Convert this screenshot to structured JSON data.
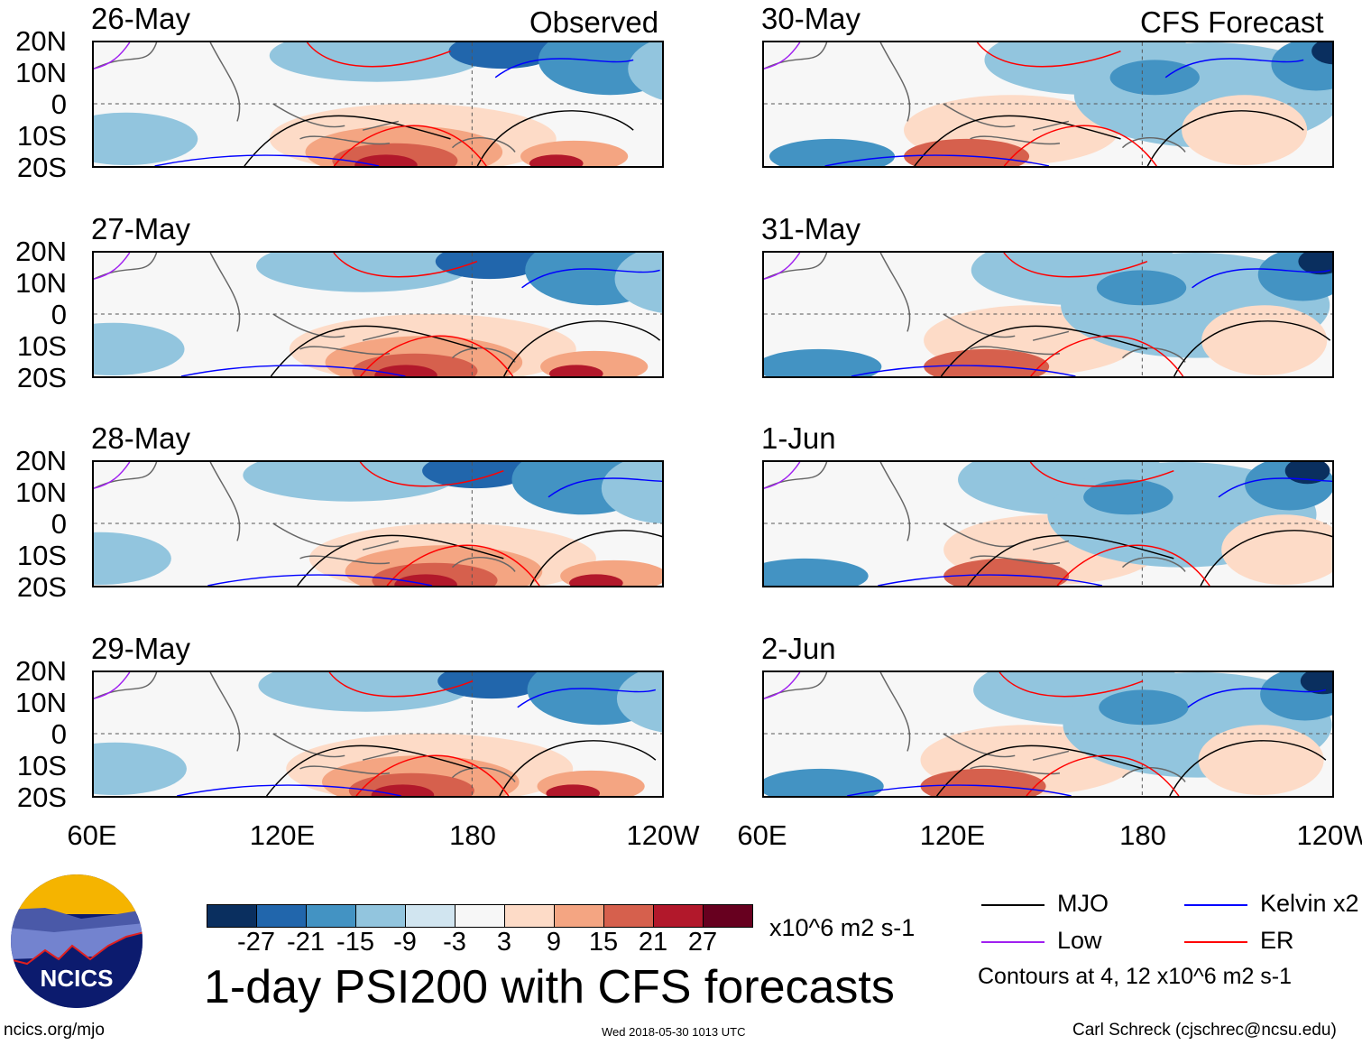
{
  "title": "1-day PSI200 with CFS forecasts",
  "headers": {
    "observed": "Observed",
    "forecast": "CFS Forecast"
  },
  "panels_left": [
    "26-May",
    "27-May",
    "28-May",
    "29-May"
  ],
  "panels_right": [
    "30-May",
    "31-May",
    "1-Jun",
    "2-Jun"
  ],
  "lat_labels": [
    "20N",
    "10N",
    "0",
    "10S",
    "20S"
  ],
  "lon_labels": [
    "60E",
    "120E",
    "180",
    "120W"
  ],
  "colorbar": {
    "colors": [
      "#0a2f5f",
      "#2166ac",
      "#4393c3",
      "#92c5de",
      "#d1e5f0",
      "#f7f7f7",
      "#fddbc7",
      "#f4a582",
      "#d6604d",
      "#b2182b",
      "#67001f"
    ],
    "labels": [
      "-27",
      "-21",
      "-15",
      "-9",
      "-3",
      "3",
      "9",
      "15",
      "21",
      "27"
    ],
    "units": "x10^6 m2 s-1"
  },
  "legend": {
    "items": [
      {
        "label": "MJO",
        "color": "#000000"
      },
      {
        "label": "Kelvin x2",
        "color": "#0000ff"
      },
      {
        "label": "Low",
        "color": "#a020f0"
      },
      {
        "label": "ER",
        "color": "#ff0000"
      }
    ],
    "contours_note": "Contours at 4, 12 x10^6 m2 s-1"
  },
  "logo": {
    "text": "NCICS"
  },
  "footer": {
    "url": "ncics.org/mjo",
    "timestamp": "Wed 2018-05-30 1013 UTC",
    "credit": "Carl Schreck (cjschrec@ncsu.edu)"
  }
}
